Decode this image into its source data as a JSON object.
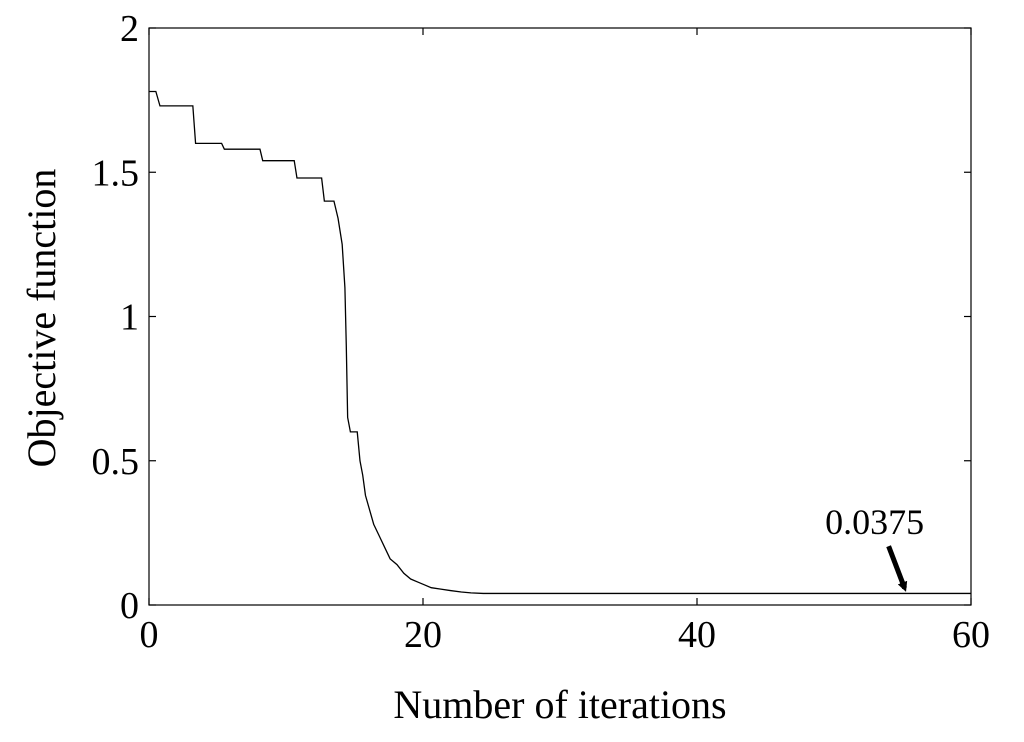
{
  "chart_data": {
    "type": "line",
    "xlabel": "Number of iterations",
    "ylabel": "Objective function",
    "xlim": [
      0,
      60
    ],
    "ylim": [
      0,
      2
    ],
    "xticks": [
      0,
      20,
      40,
      60
    ],
    "yticks": [
      0,
      0.5,
      1,
      1.5,
      2
    ],
    "xtick_labels": [
      "0",
      "20",
      "40",
      "60"
    ],
    "ytick_labels": [
      "0",
      "0.5",
      "1",
      "1.5",
      "2"
    ],
    "grid": false,
    "series": [
      {
        "color": "#000000",
        "style": "step",
        "x": [
          0,
          0.5,
          0.8,
          3.2,
          3.4,
          5.3,
          5.5,
          8.1,
          8.3,
          10.6,
          10.8,
          12.6,
          12.8,
          13.5,
          13.8,
          14.1,
          14.3,
          14.4,
          14.5,
          14.7,
          15.2,
          15.4,
          15.6,
          15.8,
          16.1,
          16.4,
          16.8,
          17.2,
          17.6,
          18.1,
          18.6,
          19.1,
          19.6,
          20.1,
          20.6,
          21.3,
          22.0,
          22.8,
          23.5,
          24.4,
          30,
          40,
          50,
          60
        ],
        "y": [
          1.78,
          1.78,
          1.73,
          1.73,
          1.6,
          1.6,
          1.58,
          1.58,
          1.54,
          1.54,
          1.48,
          1.48,
          1.4,
          1.4,
          1.34,
          1.25,
          1.1,
          0.9,
          0.65,
          0.6,
          0.6,
          0.5,
          0.45,
          0.38,
          0.33,
          0.28,
          0.24,
          0.2,
          0.16,
          0.14,
          0.11,
          0.09,
          0.08,
          0.07,
          0.06,
          0.055,
          0.05,
          0.045,
          0.042,
          0.04,
          0.04,
          0.04,
          0.04,
          0.04
        ]
      }
    ],
    "annotations": [
      {
        "text": "0.0375",
        "x": 55.3,
        "y": 0.0375,
        "arrow": true
      }
    ]
  }
}
